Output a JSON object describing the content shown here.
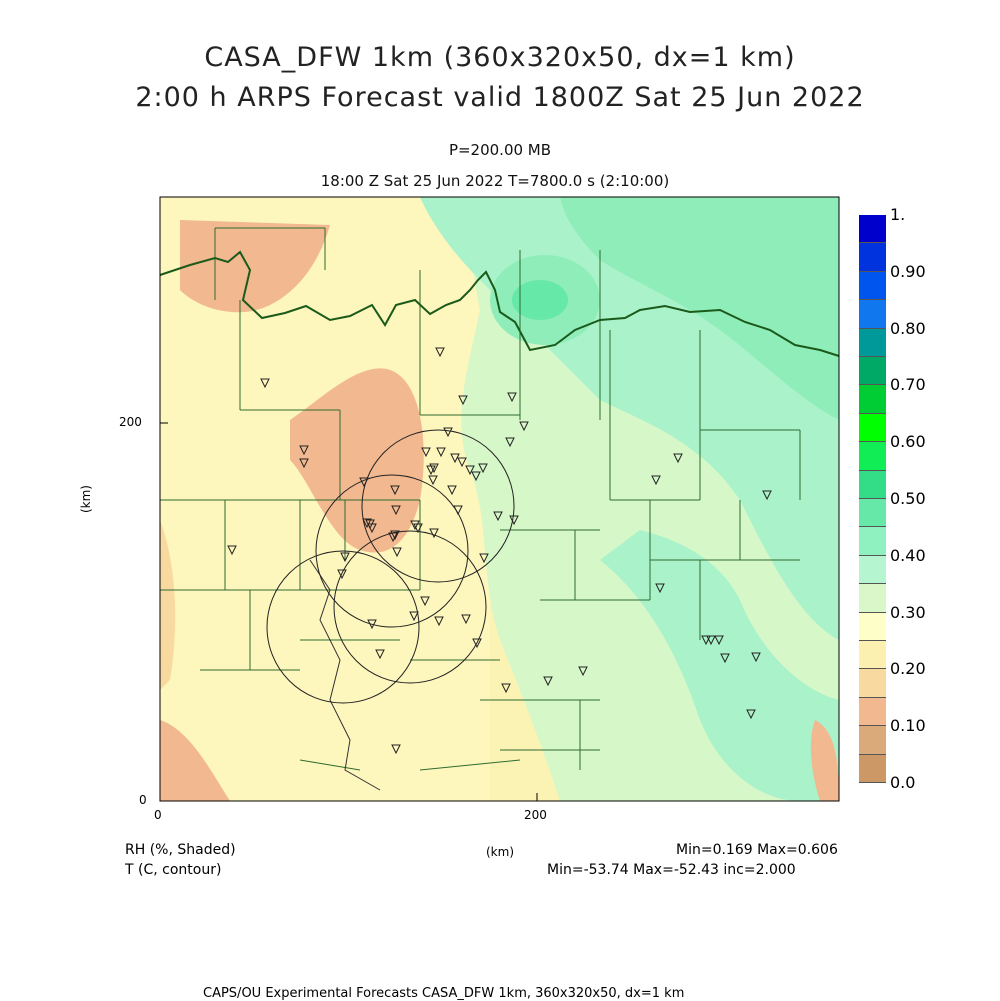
{
  "header": {
    "title_line1": "CASA_DFW 1km (360x320x50, dx=1 km)",
    "title_line2": "2:00 h ARPS Forecast valid 1800Z Sat 25 Jun 2022",
    "level": "P=200.00 MB",
    "time_line": "18:00 Z Sat 25 Jun 2022    T=7800.0 s (2:10:00)"
  },
  "axes": {
    "y_tick_200": "200",
    "y_tick_0": "0",
    "x_tick_0": "0",
    "x_tick_200": "200",
    "y_unit": "(km)",
    "x_unit": "(km)"
  },
  "legend": {
    "rh_label": "RH (%, Shaded)",
    "t_label": "T (C, contour)",
    "rh_stats": "Min=0.169 Max=0.606",
    "t_stats": "Min=-53.74 Max=-52.43 inc=2.000"
  },
  "colorbar": {
    "labels": [
      "0.0",
      "0.10",
      "0.20",
      "0.30",
      "0.40",
      "0.50",
      "0.60",
      "0.70",
      "0.80",
      "0.90",
      "1."
    ],
    "colors": [
      "#cc9966",
      "#dbaa7a",
      "#f2b890",
      "#f8d9a0",
      "#fbf0b0",
      "#fefec8",
      "#d9f7c9",
      "#b5f5d0",
      "#8ff0c0",
      "#66e8a8",
      "#33dd88",
      "#11ee55",
      "#00ff00",
      "#00cc33",
      "#00aa66",
      "#009999",
      "#1177ee",
      "#0055ee",
      "#0033dd",
      "#0000cc"
    ]
  },
  "footer": {
    "credit": "CAPS/OU Experimental Forecasts  CASA_DFW 1km, 360x320x50, dx=1 km"
  }
}
